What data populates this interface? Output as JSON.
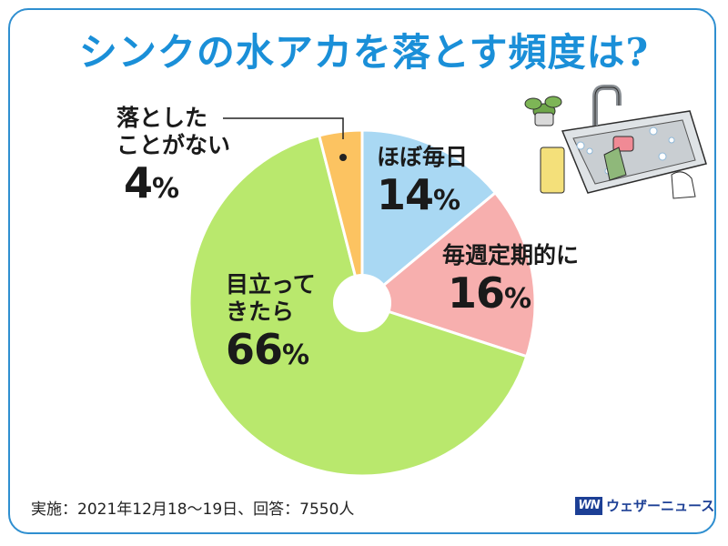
{
  "title": "シンクの水アカを落とす頻度は?",
  "chart_data": {
    "type": "pie",
    "donut": true,
    "categories": [
      "ほぼ毎日",
      "毎週定期的に",
      "目立ってきたら",
      "落としたことがない"
    ],
    "values": [
      14,
      16,
      66,
      4
    ],
    "colors": [
      "#a9d8f3",
      "#f7afae",
      "#b9e86d",
      "#fcc361"
    ],
    "labels": [
      {
        "name_lines": [
          "ほぼ毎日"
        ],
        "value": "14",
        "unit": "%"
      },
      {
        "name_lines": [
          "毎週定期的に"
        ],
        "value": "16",
        "unit": "%"
      },
      {
        "name_lines": [
          "目立って",
          "きたら"
        ],
        "value": "66",
        "unit": "%"
      },
      {
        "name_lines": [
          "落とした",
          "ことがない"
        ],
        "value": "4",
        "unit": "%"
      }
    ]
  },
  "footnote": "実施：2021年12月18～19日、回答：7550人",
  "brand": {
    "logo": "WN",
    "name": "ウェザーニュース"
  },
  "illustration": {
    "icon": "sink-cleaning-illustration"
  }
}
